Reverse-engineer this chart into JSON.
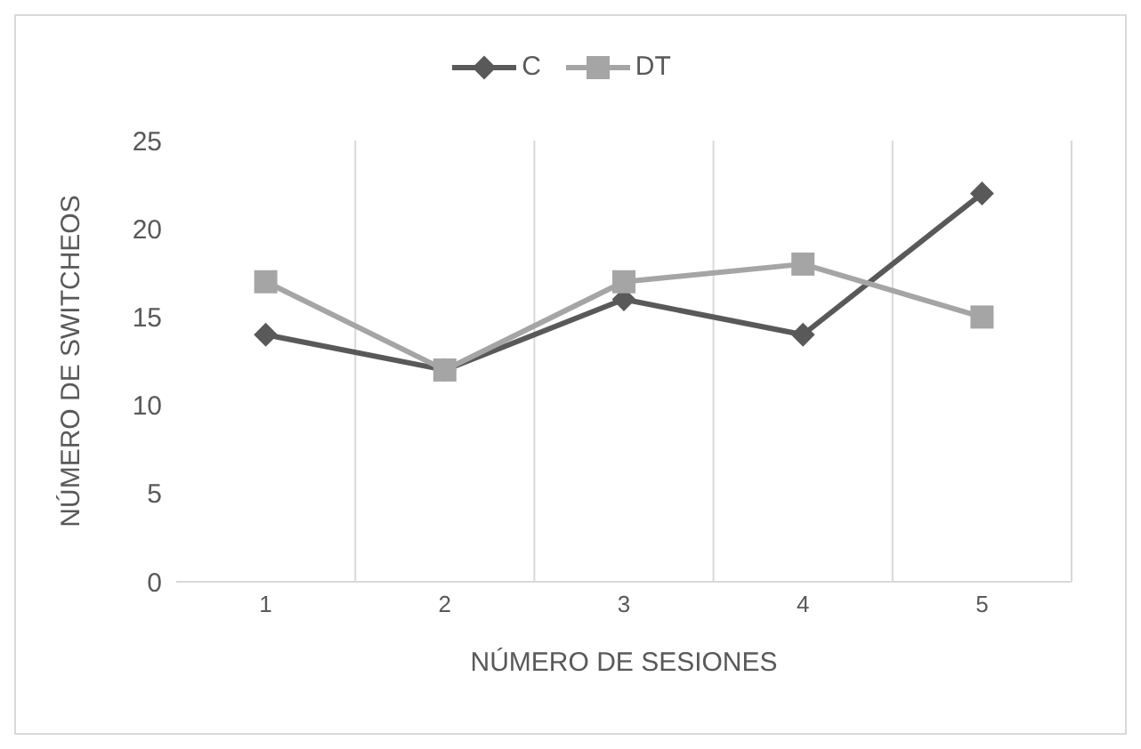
{
  "chart_data": {
    "type": "line",
    "xlabel": "NÚMERO DE SESIONES",
    "ylabel": "NÚMERO DE SWITCHEOS",
    "categories": [
      "1",
      "2",
      "3",
      "4",
      "5"
    ],
    "series": [
      {
        "name": "C",
        "color": "#595959",
        "values": [
          14,
          12,
          16,
          14,
          22
        ],
        "marker": "diamond"
      },
      {
        "name": "DT",
        "color": "#a5a5a5",
        "values": [
          17,
          12,
          17,
          18,
          15
        ],
        "marker": "square"
      }
    ],
    "ylim": [
      0,
      25
    ],
    "yticks": [
      0,
      5,
      10,
      15,
      20,
      25
    ],
    "grid": "x",
    "legend": "top",
    "line_style": "solid"
  }
}
